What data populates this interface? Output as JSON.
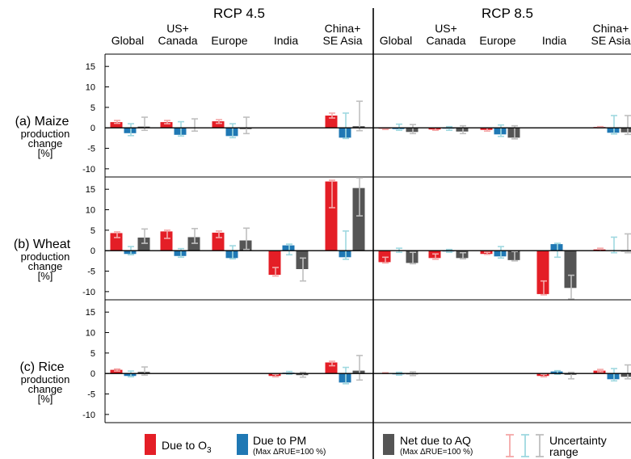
{
  "chart_data": {
    "type": "bar",
    "scenarios": [
      "RCP 4.5",
      "RCP 8.5"
    ],
    "regions": [
      [
        "Global"
      ],
      [
        "US+",
        "Canada"
      ],
      [
        "Europe"
      ],
      [
        "India"
      ],
      [
        "China+",
        "SE Asia"
      ]
    ],
    "yticks": [
      "15",
      "10",
      "5",
      "0",
      "-5",
      "-10"
    ],
    "ylim": [
      -12,
      18
    ],
    "series_names": [
      "Due to O₃",
      "Due to PM",
      "Net due to AQ"
    ],
    "crops": [
      {
        "label": [
          "(a) Maize",
          "production",
          "change",
          "[%]"
        ],
        "panels": [
          {
            "scenario": "RCP 4.5",
            "groups": [
              {
                "values": [
                  1.4,
                  -1.3,
                  0.3
                ],
                "ranges": [
                  [
                    1.1,
                    1.8
                  ],
                  [
                    -1.9,
                    1.0
                  ],
                  [
                    -0.6,
                    2.6
                  ]
                ]
              },
              {
                "values": [
                  1.4,
                  -1.7,
                  0.1
                ],
                "ranges": [
                  [
                    1.0,
                    1.8
                  ],
                  [
                    -2.0,
                    1.5
                  ],
                  [
                    -0.8,
                    2.2
                  ]
                ]
              },
              {
                "values": [
                  1.6,
                  -2.0,
                  -0.3
                ],
                "ranges": [
                  [
                    1.1,
                    2.0
                  ],
                  [
                    -2.4,
                    1.0
                  ],
                  [
                    -1.4,
                    2.6
                  ]
                ]
              },
              {
                "values": [
                  0,
                  0,
                  0
                ],
                "ranges": [
                  null,
                  null,
                  null
                ]
              },
              {
                "values": [
                  3.0,
                  -2.4,
                  0.4
                ],
                "ranges": [
                  [
                    2.4,
                    3.6
                  ],
                  [
                    -2.6,
                    3.6
                  ],
                  [
                    -0.7,
                    6.5
                  ]
                ]
              }
            ]
          },
          {
            "scenario": "RCP 8.5",
            "groups": [
              {
                "values": [
                  -0.2,
                  -0.3,
                  -1.0
                ],
                "ranges": [
                  [
                    -0.4,
                    0.0
                  ],
                  [
                    -0.6,
                    0.9
                  ],
                  [
                    -1.4,
                    0.8
                  ]
                ]
              },
              {
                "values": [
                  -0.4,
                  -0.2,
                  -0.9
                ],
                "ranges": [
                  [
                    -0.6,
                    0.0
                  ],
                  [
                    -0.6,
                    0.3
                  ],
                  [
                    -1.4,
                    0.5
                  ]
                ]
              },
              {
                "values": [
                  -0.5,
                  -1.6,
                  -2.4
                ],
                "ranges": [
                  [
                    -0.8,
                    0.0
                  ],
                  [
                    -2.1,
                    0.7
                  ],
                  [
                    -2.7,
                    0.5
                  ]
                ]
              },
              {
                "values": [
                  0,
                  0,
                  0
                ],
                "ranges": [
                  null,
                  null,
                  null
                ]
              },
              {
                "values": [
                  0.2,
                  -1.2,
                  -1.1
                ],
                "ranges": [
                  [
                    0.0,
                    0.3
                  ],
                  [
                    -1.5,
                    3.0
                  ],
                  [
                    -1.6,
                    3.0
                  ]
                ]
              }
            ]
          }
        ]
      },
      {
        "label": [
          "(b) Wheat",
          "production",
          "change",
          "[%]"
        ],
        "panels": [
          {
            "scenario": "RCP 4.5",
            "groups": [
              {
                "values": [
                  4.3,
                  -0.8,
                  3.2
                ],
                "ranges": [
                  [
                    3.2,
                    4.6
                  ],
                  [
                    -1.0,
                    1.0
                  ],
                  [
                    1.8,
                    5.3
                  ]
                ]
              },
              {
                "values": [
                  4.7,
                  -1.3,
                  3.3
                ],
                "ranges": [
                  [
                    3.0,
                    5.0
                  ],
                  [
                    -1.6,
                    0.5
                  ],
                  [
                    1.8,
                    5.4
                  ]
                ]
              },
              {
                "values": [
                  4.4,
                  -1.8,
                  2.5
                ],
                "ranges": [
                  [
                    3.2,
                    4.8
                  ],
                  [
                    -2.0,
                    1.2
                  ],
                  [
                    0.3,
                    5.5
                  ]
                ]
              },
              {
                "values": [
                  -5.9,
                  1.3,
                  -4.5
                ],
                "ranges": [
                  [
                    -6.2,
                    -4.1
                  ],
                  [
                    -1.0,
                    1.6
                  ],
                  [
                    -7.4,
                    -1.8
                  ]
                ]
              },
              {
                "values": [
                  16.9,
                  -1.6,
                  15.3
                ],
                "ranges": [
                  [
                    10.5,
                    17.2
                  ],
                  [
                    -2.1,
                    4.8
                  ],
                  [
                    8.5,
                    17.8
                  ]
                ]
              }
            ]
          },
          {
            "scenario": "RCP 8.5",
            "groups": [
              {
                "values": [
                  -2.8,
                  0.0,
                  -3.0
                ],
                "ranges": [
                  [
                    -3.0,
                    -1.6
                  ],
                  [
                    -0.4,
                    0.6
                  ],
                  [
                    -3.2,
                    -0.4
                  ]
                ]
              },
              {
                "values": [
                  -1.8,
                  -0.2,
                  -1.8
                ],
                "ranges": [
                  [
                    -2.1,
                    -0.8
                  ],
                  [
                    -0.4,
                    0.3
                  ],
                  [
                    -2.0,
                    -0.5
                  ]
                ]
              },
              {
                "values": [
                  -0.8,
                  -1.4,
                  -2.3
                ],
                "ranges": [
                  [
                    -0.9,
                    -0.4
                  ],
                  [
                    -1.8,
                    1.0
                  ],
                  [
                    -2.5,
                    -0.2
                  ]
                ]
              },
              {
                "values": [
                  -10.6,
                  1.6,
                  -9.1
                ],
                "ranges": [
                  [
                    -10.8,
                    -7.4
                  ],
                  [
                    -1.6,
                    1.8
                  ],
                  [
                    -11.8,
                    -6.0
                  ]
                ]
              },
              {
                "values": [
                  0.3,
                  0.0,
                  -0.2
                ],
                "ranges": [
                  [
                    0.0,
                    0.6
                  ],
                  [
                    -0.5,
                    3.3
                  ],
                  [
                    -0.5,
                    4.1
                  ]
                ]
              }
            ]
          }
        ]
      },
      {
        "label": [
          "(c) Rice",
          "production",
          "change",
          "[%]"
        ],
        "panels": [
          {
            "scenario": "RCP 4.5",
            "groups": [
              {
                "values": [
                  0.9,
                  -0.6,
                  0.4
                ],
                "ranges": [
                  [
                    0.6,
                    1.1
                  ],
                  [
                    -0.8,
                    0.6
                  ],
                  [
                    -0.4,
                    1.6
                  ]
                ]
              },
              {
                "values": [
                  0,
                  0,
                  0
                ],
                "ranges": [
                  null,
                  null,
                  null
                ]
              },
              {
                "values": [
                  0,
                  0,
                  0
                ],
                "ranges": [
                  null,
                  null,
                  null
                ]
              },
              {
                "values": [
                  -0.6,
                  0.2,
                  -0.4
                ],
                "ranges": [
                  [
                    -0.8,
                    -0.2
                  ],
                  [
                    -0.2,
                    0.5
                  ],
                  [
                    -0.9,
                    0.3
                  ]
                ]
              },
              {
                "values": [
                  2.7,
                  -2.2,
                  0.7
                ],
                "ranges": [
                  [
                    1.9,
                    3.0
                  ],
                  [
                    -2.5,
                    1.5
                  ],
                  [
                    -1.6,
                    4.4
                  ]
                ]
              }
            ]
          },
          {
            "scenario": "RCP 8.5",
            "groups": [
              {
                "values": [
                  0.1,
                  -0.2,
                  -0.2
                ],
                "ranges": [
                  [
                    0.0,
                    0.2
                  ],
                  [
                    -0.4,
                    0.3
                  ],
                  [
                    -0.5,
                    0.4
                  ]
                ]
              },
              {
                "values": [
                  0,
                  0,
                  0
                ],
                "ranges": [
                  null,
                  null,
                  null
                ]
              },
              {
                "values": [
                  0,
                  0,
                  0
                ],
                "ranges": [
                  null,
                  null,
                  null
                ]
              },
              {
                "values": [
                  -0.6,
                  0.5,
                  -0.3
                ],
                "ranges": [
                  [
                    -0.8,
                    -0.2
                  ],
                  [
                    -0.2,
                    0.7
                  ],
                  [
                    -1.3,
                    0.3
                  ]
                ]
              },
              {
                "values": [
                  0.7,
                  -1.4,
                  -0.8
                ],
                "ranges": [
                  [
                    0.4,
                    1.0
                  ],
                  [
                    -1.8,
                    1.2
                  ],
                  [
                    -1.3,
                    2.1
                  ]
                ]
              }
            ]
          }
        ]
      }
    ],
    "legend": {
      "o3_label": "Due to O",
      "o3_sub": "3",
      "pm_label": "Due to PM",
      "pm_note": "(Max ΔRUE=100 %)",
      "net_label": "Net due to AQ",
      "net_note": "(Max ΔRUE=100 %)",
      "unc_label_1": "Uncertainty",
      "unc_label_2": "range"
    },
    "colors": {
      "o3": "#e41e26",
      "pm": "#1f78b4",
      "net": "#555555",
      "o3_err": "#f4a8a8",
      "pm_err": "#9fd8e0",
      "net_err": "#bfbfbf"
    }
  }
}
